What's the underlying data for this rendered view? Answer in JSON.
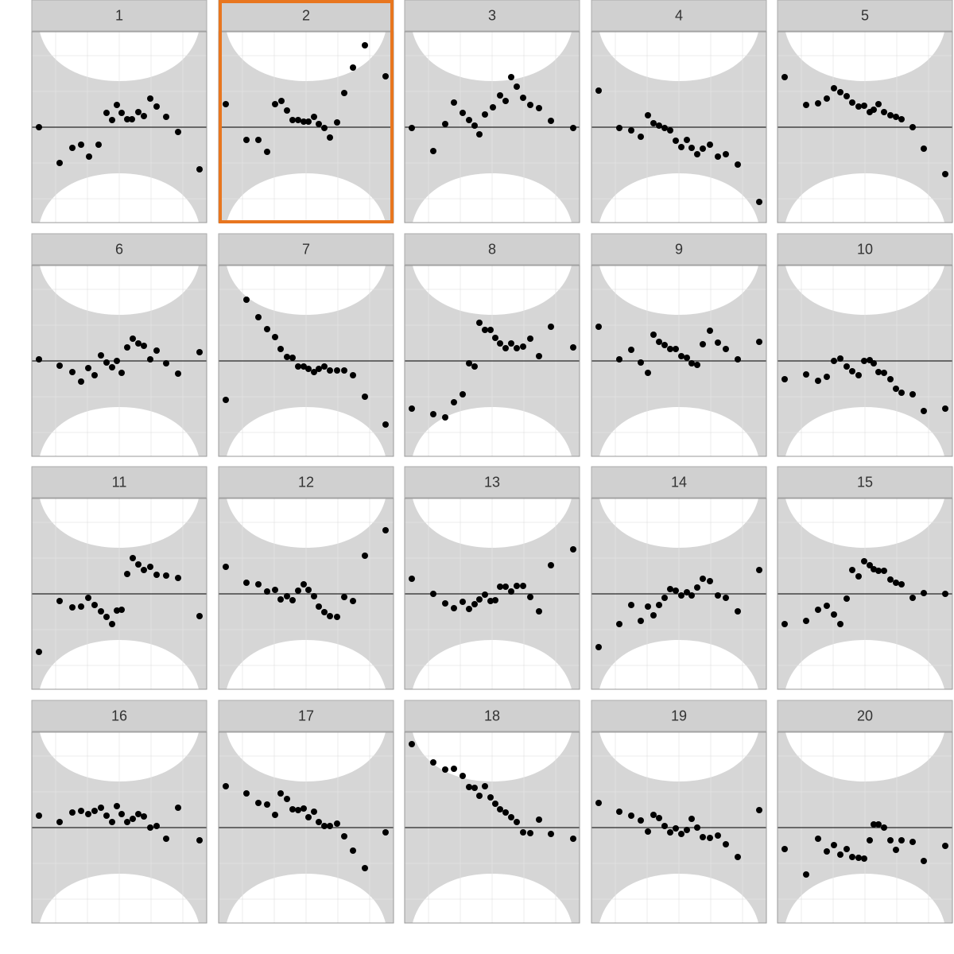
{
  "chart_data": [
    {
      "type": "scatter",
      "title": "1",
      "x": [
        9,
        35,
        51,
        62,
        72,
        84,
        94,
        101,
        107,
        113,
        120,
        126,
        134,
        141,
        149,
        157,
        169,
        184,
        211
      ],
      "y": [
        0,
        -45,
        -26,
        -22,
        -37,
        -22,
        18,
        9,
        28,
        18,
        10,
        10,
        19,
        14,
        36,
        26,
        13,
        -6,
        -53
      ],
      "xlim": [
        0,
        220
      ],
      "ylim": [
        -120,
        120
      ],
      "xticks": [
        30,
        70,
        110,
        150,
        190
      ],
      "yticks": [
        -90,
        -45,
        0,
        45,
        90
      ],
      "hline": 0,
      "grid": true,
      "color": "#000000"
    },
    {
      "type": "scatter",
      "title": "2",
      "x": [
        9,
        35,
        50,
        61,
        71,
        79,
        86,
        93,
        100,
        107,
        113,
        120,
        126,
        133,
        140,
        149,
        158,
        169,
        184,
        210
      ],
      "y": [
        29,
        -16,
        -16,
        -31,
        29,
        33,
        21,
        9,
        9,
        7,
        7,
        13,
        4,
        -1,
        -13,
        6,
        43,
        75,
        103,
        64
      ],
      "xlim": [
        0,
        220
      ],
      "ylim": [
        -120,
        120
      ],
      "xticks": [
        30,
        70,
        110,
        150,
        190
      ],
      "yticks": [
        -90,
        -45,
        0,
        45,
        90
      ],
      "hline": 0,
      "grid": true,
      "color": "#000000",
      "selected": true
    },
    {
      "type": "scatter",
      "title": "3",
      "x": [
        9,
        36,
        51,
        62,
        73,
        81,
        88,
        94,
        101,
        111,
        120,
        127,
        134,
        141,
        149,
        158,
        169,
        184,
        212
      ],
      "y": [
        -1,
        -30,
        4,
        31,
        18,
        9,
        2,
        -9,
        16,
        25,
        40,
        33,
        63,
        51,
        37,
        28,
        24,
        8,
        -1
      ],
      "xlim": [
        0,
        220
      ],
      "ylim": [
        -120,
        120
      ],
      "xticks": [
        30,
        70,
        110,
        150,
        190
      ],
      "yticks": [
        -90,
        -45,
        0,
        45,
        90
      ],
      "hline": 0,
      "grid": true,
      "color": "#000000"
    },
    {
      "type": "scatter",
      "title": "4",
      "x": [
        9,
        35,
        50,
        62,
        71,
        78,
        85,
        92,
        99,
        106,
        113,
        120,
        126,
        133,
        140,
        149,
        159,
        169,
        184,
        211
      ],
      "y": [
        46,
        -1,
        -4,
        -12,
        15,
        5,
        2,
        -1,
        -4,
        -17,
        -25,
        -16,
        -26,
        -34,
        -27,
        -22,
        -37,
        -34,
        -47,
        -94
      ],
      "xlim": [
        0,
        220
      ],
      "ylim": [
        -120,
        120
      ],
      "xticks": [
        30,
        70,
        110,
        150,
        190
      ],
      "yticks": [
        -90,
        -45,
        0,
        45,
        90
      ],
      "hline": 0,
      "grid": true,
      "color": "#000000"
    },
    {
      "type": "scatter",
      "title": "5",
      "x": [
        9,
        36,
        51,
        62,
        71,
        79,
        87,
        94,
        102,
        109,
        116,
        121,
        127,
        134,
        142,
        149,
        156,
        170,
        184,
        211
      ],
      "y": [
        63,
        28,
        30,
        36,
        49,
        44,
        39,
        31,
        26,
        27,
        19,
        22,
        29,
        19,
        15,
        13,
        10,
        0,
        -27,
        -59
      ],
      "xlim": [
        0,
        220
      ],
      "ylim": [
        -120,
        120
      ],
      "xticks": [
        30,
        70,
        110,
        150,
        190
      ],
      "yticks": [
        -90,
        -45,
        0,
        45,
        90
      ],
      "hline": 0,
      "grid": true,
      "color": "#000000"
    },
    {
      "type": "scatter",
      "title": "6",
      "x": [
        9,
        35,
        51,
        62,
        71,
        79,
        87,
        94,
        101,
        107,
        113,
        120,
        127,
        134,
        141,
        149,
        157,
        169,
        184,
        211
      ],
      "y": [
        2,
        -6,
        -14,
        -26,
        -9,
        -18,
        7,
        -2,
        -8,
        0,
        -15,
        17,
        28,
        22,
        19,
        2,
        13,
        -3,
        -16,
        11
      ],
      "xlim": [
        0,
        220
      ],
      "ylim": [
        -120,
        120
      ],
      "xticks": [
        30,
        70,
        110,
        150,
        190
      ],
      "yticks": [
        -90,
        -45,
        0,
        45,
        90
      ],
      "hline": 0,
      "grid": true,
      "color": "#000000"
    },
    {
      "type": "scatter",
      "title": "7",
      "x": [
        9,
        35,
        50,
        61,
        71,
        78,
        86,
        93,
        100,
        107,
        113,
        120,
        126,
        133,
        140,
        149,
        158,
        169,
        184,
        210
      ],
      "y": [
        -49,
        77,
        55,
        40,
        30,
        15,
        5,
        4,
        -7,
        -7,
        -10,
        -14,
        -10,
        -7,
        -12,
        -12,
        -12,
        -18,
        -45,
        -80
      ],
      "xlim": [
        0,
        220
      ],
      "ylim": [
        -120,
        120
      ],
      "xticks": [
        30,
        70,
        110,
        150,
        190
      ],
      "yticks": [
        -90,
        -45,
        0,
        45,
        90
      ],
      "hline": 0,
      "grid": true,
      "color": "#000000"
    },
    {
      "type": "scatter",
      "title": "8",
      "x": [
        9,
        36,
        51,
        62,
        73,
        81,
        88,
        94,
        101,
        108,
        114,
        120,
        127,
        134,
        141,
        149,
        158,
        169,
        184,
        212
      ],
      "y": [
        -60,
        -67,
        -71,
        -52,
        -42,
        -3,
        -7,
        48,
        39,
        39,
        29,
        22,
        16,
        22,
        16,
        18,
        28,
        6,
        43,
        17
      ],
      "xlim": [
        0,
        220
      ],
      "ylim": [
        -120,
        120
      ],
      "xticks": [
        30,
        70,
        110,
        150,
        190
      ],
      "yticks": [
        -90,
        -45,
        0,
        45,
        90
      ],
      "hline": 0,
      "grid": true,
      "color": "#000000"
    },
    {
      "type": "scatter",
      "title": "9",
      "x": [
        9,
        35,
        50,
        62,
        71,
        78,
        85,
        92,
        99,
        106,
        113,
        120,
        126,
        133,
        140,
        149,
        159,
        169,
        184,
        211
      ],
      "y": [
        43,
        2,
        14,
        -2,
        -15,
        33,
        24,
        20,
        15,
        15,
        6,
        4,
        -3,
        -5,
        21,
        38,
        23,
        15,
        2,
        24
      ],
      "xlim": [
        0,
        220
      ],
      "ylim": [
        -120,
        120
      ],
      "xticks": [
        30,
        70,
        110,
        150,
        190
      ],
      "yticks": [
        -90,
        -45,
        0,
        45,
        90
      ],
      "hline": 0,
      "grid": true,
      "color": "#000000"
    },
    {
      "type": "scatter",
      "title": "10",
      "x": [
        9,
        36,
        51,
        62,
        71,
        79,
        87,
        94,
        102,
        109,
        116,
        121,
        127,
        134,
        142,
        149,
        156,
        170,
        184,
        211
      ],
      "y": [
        -23,
        -17,
        -25,
        -20,
        0,
        3,
        -7,
        -13,
        -18,
        0,
        1,
        -3,
        -14,
        -15,
        -23,
        -35,
        -40,
        -42,
        -63,
        -60
      ],
      "xlim": [
        0,
        220
      ],
      "ylim": [
        -120,
        120
      ],
      "xticks": [
        30,
        70,
        110,
        150,
        190
      ],
      "yticks": [
        -90,
        -45,
        0,
        45,
        90
      ],
      "hline": 0,
      "grid": true,
      "color": "#000000"
    },
    {
      "type": "scatter",
      "title": "11",
      "x": [
        9,
        35,
        51,
        62,
        71,
        79,
        87,
        94,
        101,
        107,
        113,
        120,
        127,
        134,
        141,
        149,
        157,
        169,
        184,
        211
      ],
      "y": [
        -73,
        -9,
        -17,
        -16,
        -5,
        -14,
        -22,
        -29,
        -38,
        -21,
        -20,
        25,
        45,
        37,
        30,
        34,
        24,
        23,
        20,
        -28
      ],
      "xlim": [
        0,
        220
      ],
      "ylim": [
        -120,
        120
      ],
      "xticks": [
        30,
        70,
        110,
        150,
        190
      ],
      "yticks": [
        -90,
        -45,
        0,
        45,
        90
      ],
      "hline": 0,
      "grid": true,
      "color": "#000000"
    },
    {
      "type": "scatter",
      "title": "12",
      "x": [
        9,
        35,
        50,
        61,
        71,
        78,
        86,
        93,
        100,
        107,
        113,
        120,
        126,
        133,
        140,
        149,
        158,
        169,
        184,
        210
      ],
      "y": [
        34,
        14,
        12,
        3,
        5,
        -7,
        -3,
        -8,
        4,
        12,
        5,
        -3,
        -16,
        -23,
        -28,
        -29,
        -4,
        -9,
        48,
        80
      ],
      "xlim": [
        0,
        220
      ],
      "ylim": [
        -120,
        120
      ],
      "xticks": [
        30,
        70,
        110,
        150,
        190
      ],
      "yticks": [
        -90,
        -45,
        0,
        45,
        90
      ],
      "hline": 0,
      "grid": true,
      "color": "#000000"
    },
    {
      "type": "scatter",
      "title": "13",
      "x": [
        9,
        36,
        51,
        62,
        73,
        81,
        88,
        94,
        101,
        108,
        114,
        120,
        127,
        134,
        141,
        149,
        158,
        169,
        184,
        212
      ],
      "y": [
        19,
        0,
        -12,
        -18,
        -10,
        -19,
        -13,
        -7,
        -1,
        -9,
        -8,
        9,
        9,
        3,
        10,
        10,
        -4,
        -22,
        36,
        56
      ],
      "xlim": [
        0,
        220
      ],
      "ylim": [
        -120,
        120
      ],
      "xticks": [
        30,
        70,
        110,
        150,
        190
      ],
      "yticks": [
        -90,
        -45,
        0,
        45,
        90
      ],
      "hline": 0,
      "grid": true,
      "color": "#000000"
    },
    {
      "type": "scatter",
      "title": "14",
      "x": [
        9,
        35,
        50,
        62,
        71,
        78,
        85,
        92,
        99,
        106,
        113,
        120,
        126,
        133,
        140,
        149,
        159,
        169,
        184,
        211
      ],
      "y": [
        -67,
        -38,
        -14,
        -34,
        -16,
        -27,
        -14,
        -5,
        6,
        4,
        -2,
        2,
        -2,
        8,
        19,
        16,
        -2,
        -5,
        -22,
        30
      ],
      "xlim": [
        0,
        220
      ],
      "ylim": [
        -120,
        120
      ],
      "xticks": [
        30,
        70,
        110,
        150,
        190
      ],
      "yticks": [
        -90,
        -45,
        0,
        45,
        90
      ],
      "hline": 0,
      "grid": true,
      "color": "#000000"
    },
    {
      "type": "scatter",
      "title": "15",
      "x": [
        9,
        36,
        51,
        62,
        71,
        79,
        87,
        94,
        102,
        109,
        116,
        121,
        127,
        134,
        142,
        149,
        156,
        170,
        184,
        211
      ],
      "y": [
        -38,
        -34,
        -20,
        -15,
        -26,
        -38,
        -6,
        30,
        22,
        41,
        36,
        31,
        29,
        29,
        18,
        14,
        12,
        -5,
        1,
        0
      ],
      "xlim": [
        0,
        220
      ],
      "ylim": [
        -120,
        120
      ],
      "xticks": [
        30,
        70,
        110,
        150,
        190
      ],
      "yticks": [
        -90,
        -45,
        0,
        45,
        90
      ],
      "hline": 0,
      "grid": true,
      "color": "#000000"
    },
    {
      "type": "scatter",
      "title": "16",
      "x": [
        9,
        35,
        51,
        62,
        71,
        79,
        87,
        94,
        101,
        107,
        113,
        120,
        127,
        134,
        141,
        149,
        157,
        169,
        184,
        211
      ],
      "y": [
        15,
        7,
        19,
        21,
        17,
        21,
        25,
        15,
        7,
        27,
        17,
        7,
        11,
        17,
        14,
        0,
        2,
        -14,
        25,
        -16
      ],
      "xlim": [
        0,
        220
      ],
      "ylim": [
        -120,
        120
      ],
      "xticks": [
        30,
        70,
        110,
        150,
        190
      ],
      "yticks": [
        -90,
        -45,
        0,
        45,
        90
      ],
      "hline": 0,
      "grid": true,
      "color": "#000000"
    },
    {
      "type": "scatter",
      "title": "17",
      "x": [
        9,
        35,
        50,
        61,
        71,
        78,
        86,
        93,
        100,
        107,
        113,
        120,
        126,
        133,
        140,
        149,
        158,
        169,
        184,
        210
      ],
      "y": [
        52,
        43,
        31,
        29,
        16,
        43,
        36,
        23,
        22,
        24,
        13,
        20,
        7,
        2,
        2,
        5,
        -11,
        -29,
        -51,
        -6
      ],
      "xlim": [
        0,
        220
      ],
      "ylim": [
        -120,
        120
      ],
      "xticks": [
        30,
        70,
        110,
        150,
        190
      ],
      "yticks": [
        -90,
        -45,
        0,
        45,
        90
      ],
      "hline": 0,
      "grid": true,
      "color": "#000000"
    },
    {
      "type": "scatter",
      "title": "18",
      "x": [
        9,
        36,
        51,
        62,
        73,
        81,
        88,
        94,
        101,
        108,
        114,
        120,
        127,
        134,
        141,
        149,
        158,
        169,
        184,
        212
      ],
      "y": [
        105,
        82,
        73,
        74,
        65,
        51,
        50,
        40,
        52,
        38,
        30,
        23,
        19,
        13,
        7,
        -6,
        -7,
        10,
        -8,
        -14
      ],
      "xlim": [
        0,
        220
      ],
      "ylim": [
        -120,
        120
      ],
      "xticks": [
        30,
        70,
        110,
        150,
        190
      ],
      "yticks": [
        -90,
        -45,
        0,
        45,
        90
      ],
      "hline": 0,
      "grid": true,
      "color": "#000000"
    },
    {
      "type": "scatter",
      "title": "19",
      "x": [
        9,
        35,
        50,
        62,
        71,
        78,
        85,
        92,
        99,
        106,
        113,
        120,
        126,
        133,
        140,
        149,
        159,
        169,
        184,
        211
      ],
      "y": [
        31,
        20,
        15,
        9,
        -5,
        16,
        12,
        2,
        -6,
        -1,
        -8,
        -3,
        11,
        0,
        -12,
        -13,
        -10,
        -21,
        -37,
        22
      ],
      "xlim": [
        0,
        220
      ],
      "ylim": [
        -120,
        120
      ],
      "xticks": [
        30,
        70,
        110,
        150,
        190
      ],
      "yticks": [
        -90,
        -45,
        0,
        45,
        90
      ],
      "hline": 0,
      "grid": true,
      "color": "#000000"
    },
    {
      "type": "scatter",
      "title": "20",
      "x": [
        9,
        36,
        51,
        62,
        71,
        79,
        87,
        94,
        102,
        109,
        116,
        121,
        127,
        134,
        142,
        149,
        156,
        170,
        184,
        211
      ],
      "y": [
        -27,
        -59,
        -14,
        -30,
        -22,
        -34,
        -27,
        -37,
        -38,
        -39,
        -16,
        4,
        4,
        0,
        -16,
        -28,
        -16,
        -18,
        -42,
        -23
      ],
      "xlim": [
        0,
        220
      ],
      "ylim": [
        -120,
        120
      ],
      "xticks": [
        30,
        70,
        110,
        150,
        190
      ],
      "yticks": [
        -90,
        -45,
        0,
        45,
        90
      ],
      "hline": 0,
      "grid": true,
      "color": "#000000"
    }
  ]
}
